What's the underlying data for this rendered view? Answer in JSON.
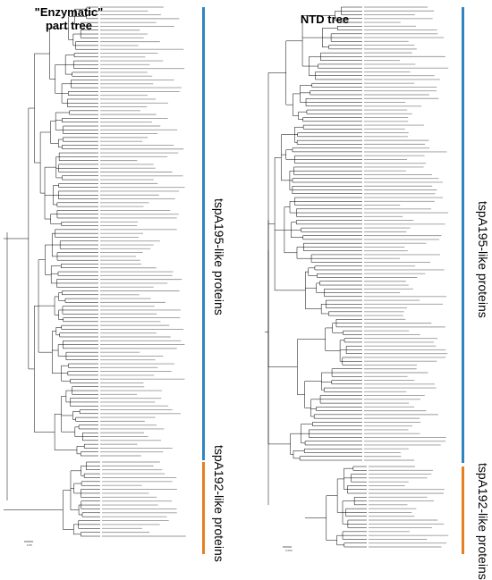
{
  "panels": [
    {
      "title_line1": "\"Enzymatic\"",
      "title_line2": "part tree",
      "clades": [
        {
          "label": "tspA195-like proteins",
          "color": "#2e86c1"
        },
        {
          "label": "tspA192-like proteins",
          "color": "#e67e22"
        }
      ],
      "scale_label": "0.05"
    },
    {
      "title": "NTD tree",
      "clades": [
        {
          "label": "tspA195-like proteins",
          "color": "#2e86c1"
        },
        {
          "label": "tspA192-like proteins",
          "color": "#e67e22"
        }
      ],
      "scale_label": "0.050"
    }
  ],
  "colors": {
    "blue": "#2e86c1",
    "orange": "#e67e22",
    "branch": "#000000"
  }
}
